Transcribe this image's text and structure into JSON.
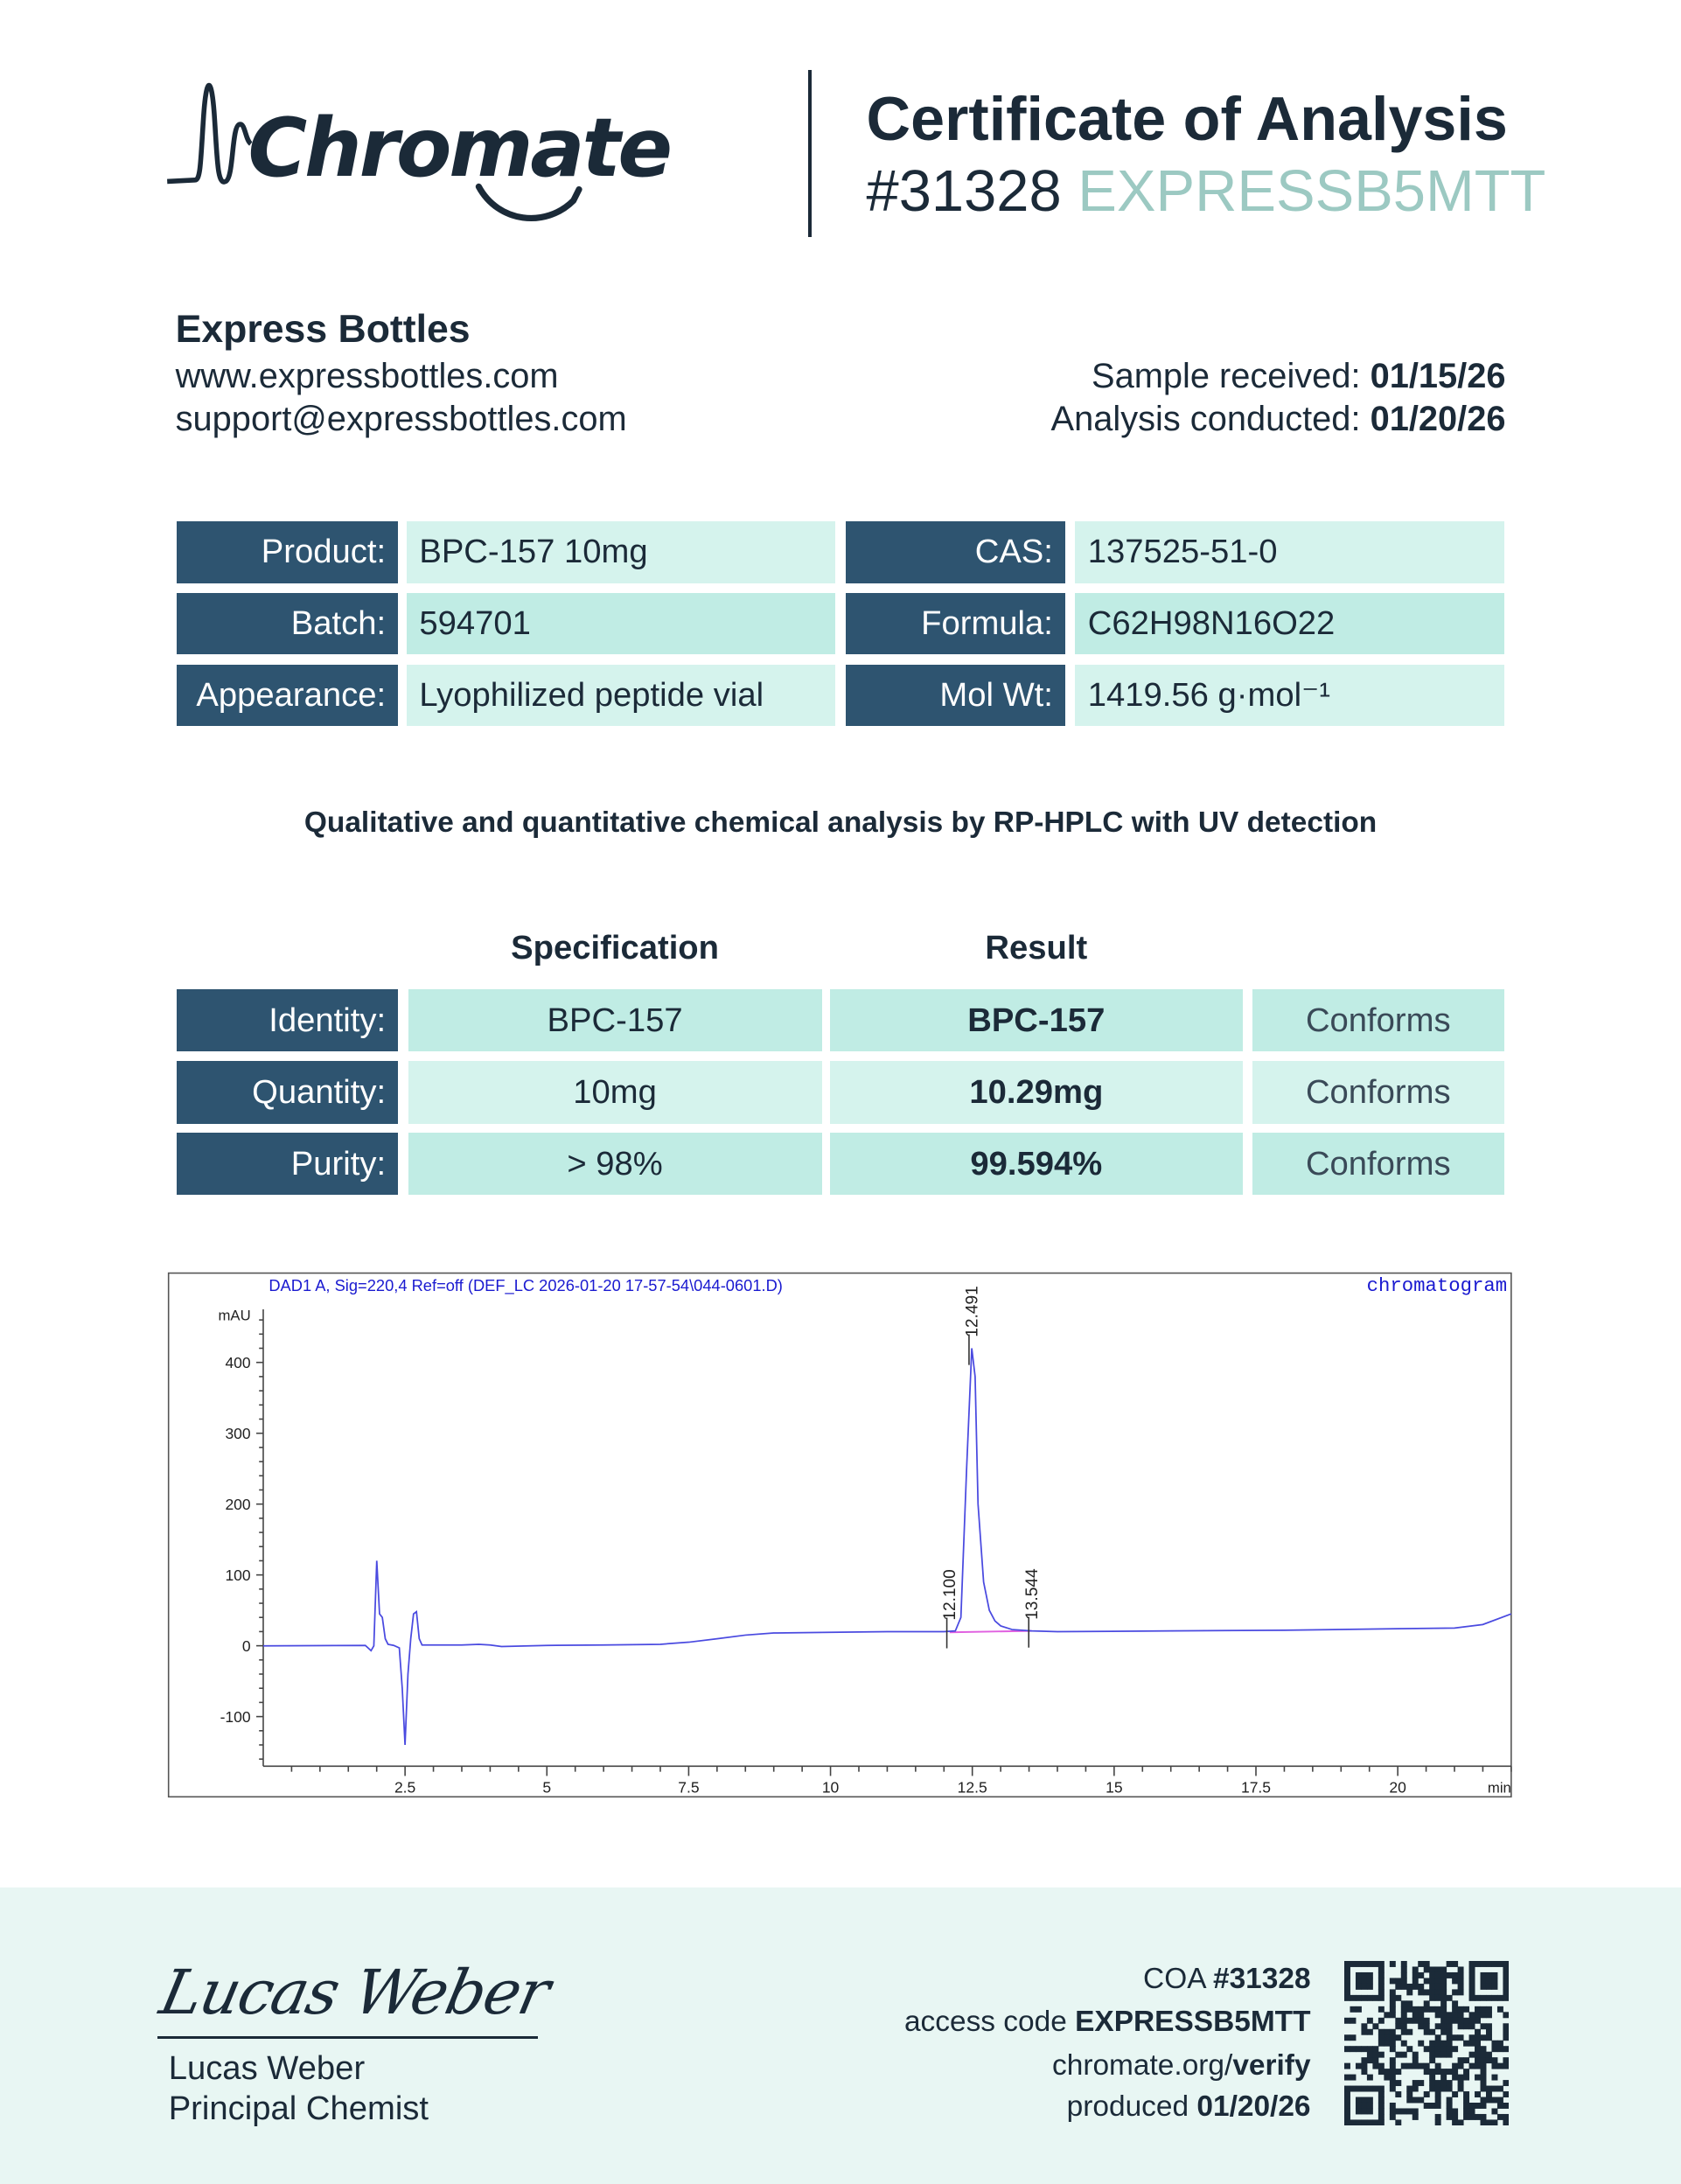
{
  "logo": {
    "text": "Chromate"
  },
  "header": {
    "title": "Certificate of Analysis",
    "coa_number": "#31328",
    "access_code": "EXPRESSB5MTT"
  },
  "client": {
    "name": "Express Bottles",
    "website": "www.expressbottles.com",
    "email": "support@expressbottles.com"
  },
  "dates": {
    "received_label": "Sample received:",
    "received": "01/15/26",
    "conducted_label": "Analysis conducted:",
    "conducted": "01/20/26"
  },
  "product_table": [
    {
      "label": "Product:",
      "value": "BPC-157 10mg",
      "label2": "CAS:",
      "value2": "137525-51-0"
    },
    {
      "label": "Batch:",
      "value": "594701",
      "label2": "Formula:",
      "value2": "C62H98N16O22"
    },
    {
      "label": "Appearance:",
      "value": "Lyophilized peptide vial",
      "label2": "Mol Wt:",
      "value2": "1419.56 g·mol⁻¹"
    }
  ],
  "method": "Qualitative and quantitative chemical analysis by RP-HPLC with UV detection",
  "results": {
    "headers": {
      "specification": "Specification",
      "result": "Result"
    },
    "rows": [
      {
        "label": "Identity:",
        "spec": "BPC-157",
        "result": "BPC-157",
        "status": "Conforms"
      },
      {
        "label": "Quantity:",
        "spec": "10mg",
        "result": "10.29mg",
        "status": "Conforms"
      },
      {
        "label": "Purity:",
        "spec": "> 98%",
        "result": "99.594%",
        "status": "Conforms"
      }
    ]
  },
  "chart_data": {
    "type": "line",
    "title": "DAD1 A, Sig=220,4 Ref=off (DEF_LC 2026-01-20 17-57-54\\044-0601.D)",
    "corner_label": "chromatogram",
    "ylabel": "mAU",
    "xlabel": "min",
    "xlim": [
      0,
      22
    ],
    "ylim": [
      -170,
      475
    ],
    "x_ticks": [
      2.5,
      5,
      7.5,
      10,
      12.5,
      15,
      17.5,
      20
    ],
    "x_tick_labels": [
      "2.5",
      "5",
      "7.5",
      "10",
      "12.5",
      "15",
      "17.5",
      "20"
    ],
    "y_ticks": [
      -100,
      0,
      100,
      200,
      300,
      400
    ],
    "y_tick_labels": [
      "-100",
      "0",
      "100",
      "200",
      "300",
      "400"
    ],
    "grid": false,
    "line_color": "#4a4ae0",
    "baseline_color": "#e060e0",
    "peak_labels": [
      {
        "x": 12.1,
        "label": "12.100",
        "y": 20
      },
      {
        "x": 12.491,
        "label": "12.491",
        "y": 420
      },
      {
        "x": 13.544,
        "label": "13.544",
        "y": 21
      }
    ],
    "series": [
      {
        "points": [
          [
            0,
            0
          ],
          [
            1.8,
            0.5
          ],
          [
            1.85,
            -3
          ],
          [
            1.9,
            -7
          ],
          [
            1.95,
            0
          ],
          [
            2.0,
            120
          ],
          [
            2.05,
            45
          ],
          [
            2.1,
            40
          ],
          [
            2.15,
            10
          ],
          [
            2.2,
            2
          ],
          [
            2.3,
            0.5
          ],
          [
            2.4,
            -3
          ],
          [
            2.45,
            -60
          ],
          [
            2.5,
            -140
          ],
          [
            2.55,
            -40
          ],
          [
            2.6,
            10
          ],
          [
            2.65,
            45
          ],
          [
            2.7,
            48
          ],
          [
            2.75,
            10
          ],
          [
            2.8,
            1
          ],
          [
            3.5,
            1
          ],
          [
            3.8,
            2
          ],
          [
            4.0,
            1
          ],
          [
            4.2,
            -1
          ],
          [
            5,
            0.5
          ],
          [
            6,
            1
          ],
          [
            7,
            2
          ],
          [
            7.5,
            5
          ],
          [
            8,
            10
          ],
          [
            8.5,
            15
          ],
          [
            9,
            18
          ],
          [
            10,
            19
          ],
          [
            11,
            20
          ],
          [
            12,
            20
          ],
          [
            12.2,
            21
          ],
          [
            12.3,
            40
          ],
          [
            12.4,
            250
          ],
          [
            12.491,
            420
          ],
          [
            12.55,
            380
          ],
          [
            12.6,
            200
          ],
          [
            12.7,
            90
          ],
          [
            12.8,
            50
          ],
          [
            12.9,
            35
          ],
          [
            13.0,
            28
          ],
          [
            13.2,
            23
          ],
          [
            13.544,
            21
          ],
          [
            14,
            20
          ],
          [
            16,
            21
          ],
          [
            18,
            22
          ],
          [
            20,
            24
          ],
          [
            21,
            25
          ],
          [
            21.5,
            30
          ],
          [
            22,
            45
          ]
        ]
      }
    ]
  },
  "signature": {
    "script": "Lucas Weber",
    "name": "Lucas Weber",
    "title": "Principal Chemist"
  },
  "footer": {
    "coa_label": "COA",
    "coa": "#31328",
    "access_label": "access code",
    "access": "EXPRESSB5MTT",
    "verify_domain": "chromate.org/",
    "verify_path": "verify",
    "produced_label": "produced",
    "produced": "01/20/26"
  },
  "colors": {
    "dark": "#1b2a38",
    "label_bg": "#2e5470",
    "cell_light": "#d5f3ed",
    "cell_mid": "#c0ece4",
    "accent": "#9cc9c2",
    "footer_bg": "#e8f6f3"
  }
}
